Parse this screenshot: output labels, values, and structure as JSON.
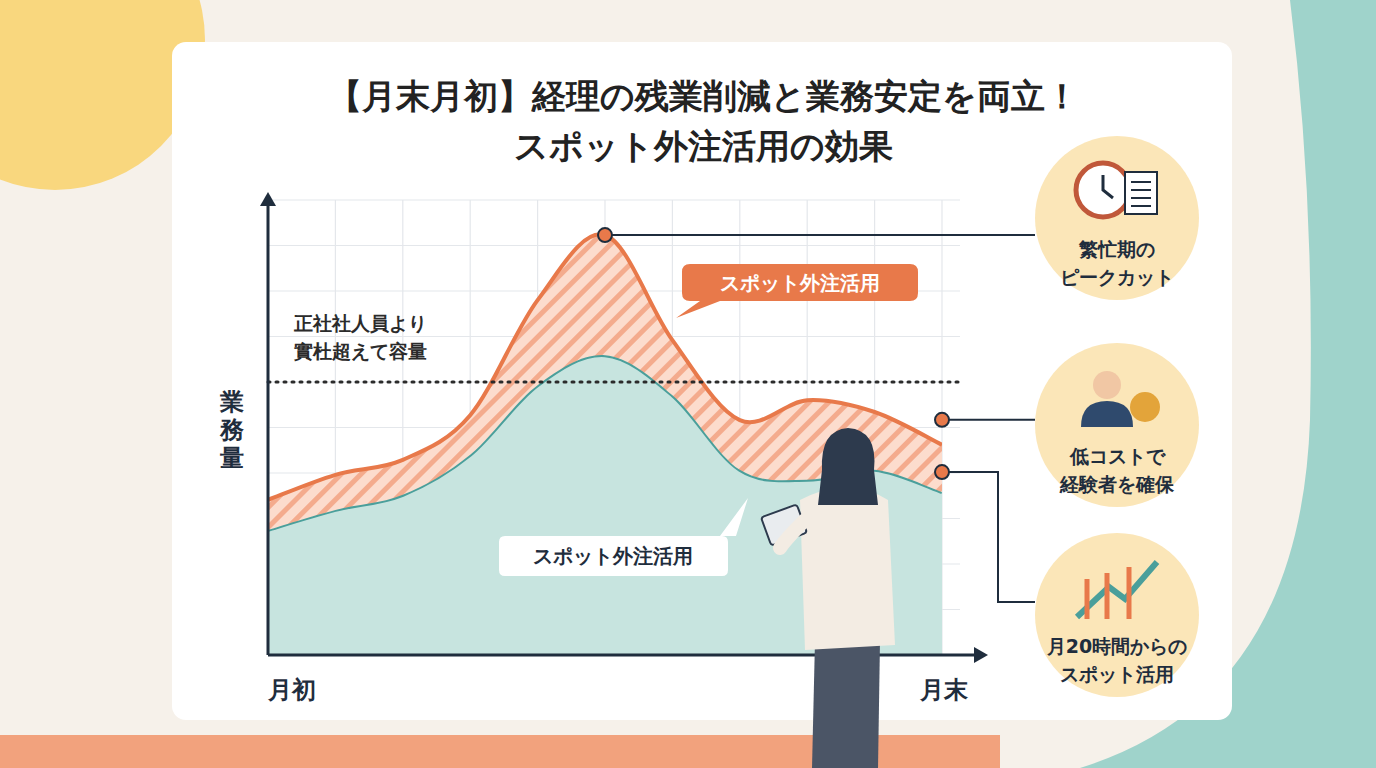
{
  "chart_data": {
    "type": "area",
    "title": [
      "【月末月初】経理の残業削減と業務安定を両立！",
      "スポット外注活用の効果"
    ],
    "y_label": "業務量",
    "categories": [
      "月初",
      null,
      null,
      null,
      null,
      null,
      null,
      null,
      null,
      null,
      "月末"
    ],
    "series": [
      {
        "name": "スポット外注活用",
        "color": "#4a9f9b",
        "values": [
          27.5,
          31.9,
          35.2,
          44,
          59.3,
          65.9,
          57.1,
          40.7,
          38.5,
          40.7,
          35.8
        ]
      },
      {
        "name": "スポット外注活用",
        "color": "#e8794a",
        "values": [
          6.6,
          7.7,
          7.7,
          8.7,
          18.7,
          26.4,
          12.1,
          10.9,
          17.5,
          12.7,
          10.4
        ]
      }
    ],
    "stacked": true,
    "ylim": [
      0,
      100
    ],
    "yticks": [
      0,
      10,
      20,
      30,
      40,
      50,
      60,
      70,
      80,
      90,
      100
    ],
    "tick_labels": "x",
    "grid": true,
    "capacity_line": {
      "value": 60,
      "label": [
        "正社社人員より",
        "實杜超えて容量"
      ]
    },
    "callouts": [
      [
        "繁忙期の",
        "ピークカット"
      ],
      [
        "低コストで",
        "経験者を確保"
      ],
      [
        "月20時間からの",
        "スポット活用"
      ]
    ]
  }
}
